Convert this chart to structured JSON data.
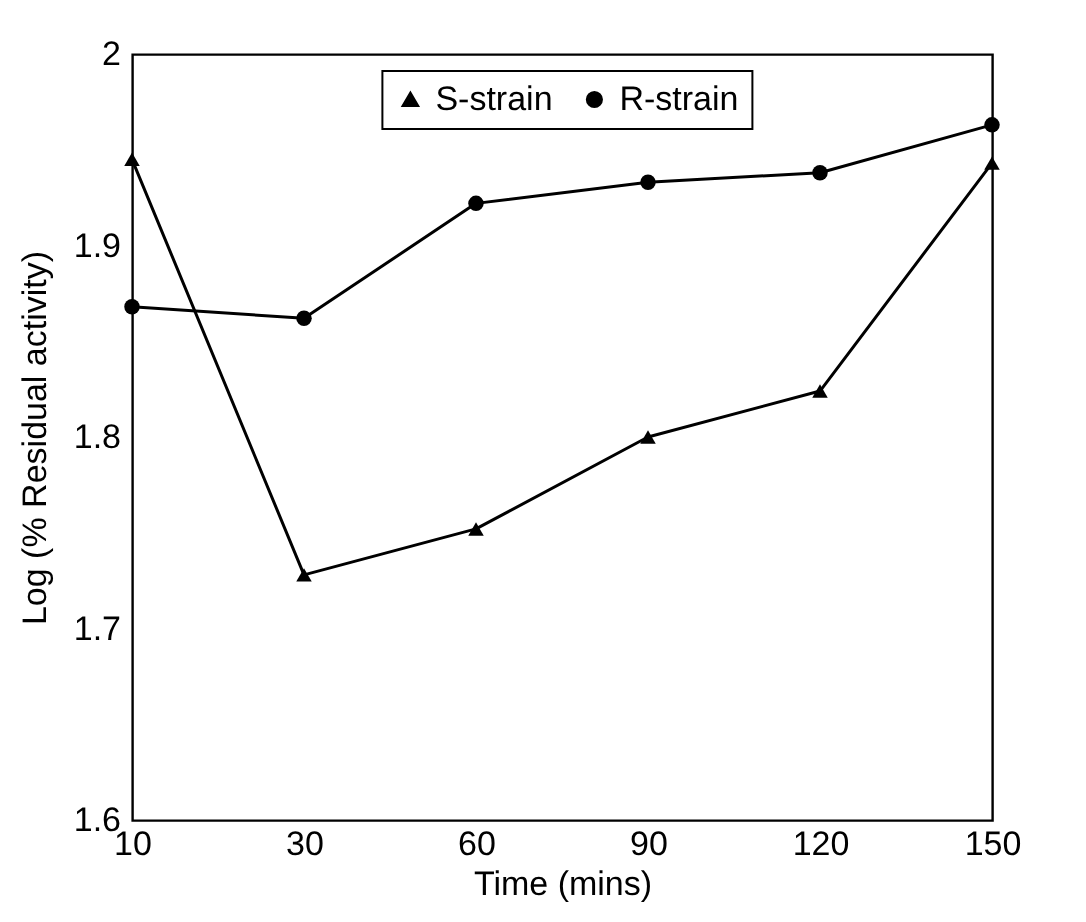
{
  "chart_data": {
    "type": "line",
    "xlabel": "Time (mins)",
    "ylabel": "Log (% Residual activity)",
    "categories": [
      "10",
      "30",
      "60",
      "90",
      "120",
      "150"
    ],
    "series": [
      {
        "name": "S-strain",
        "color": "#000000",
        "marker": "triangle",
        "values": [
          1.945,
          1.728,
          1.752,
          1.8,
          1.824,
          1.943
        ]
      },
      {
        "name": "R-strain",
        "color": "#000000",
        "marker": "circle",
        "values": [
          1.868,
          1.862,
          1.922,
          1.933,
          1.938,
          1.963
        ]
      }
    ],
    "ylim": [
      1.6,
      2
    ],
    "yticks": [
      1.6,
      1.7,
      1.8,
      1.9,
      {
        "value": 2,
        "label": "2"
      }
    ],
    "grid": false,
    "legend": "top",
    "line_style": "solid"
  }
}
